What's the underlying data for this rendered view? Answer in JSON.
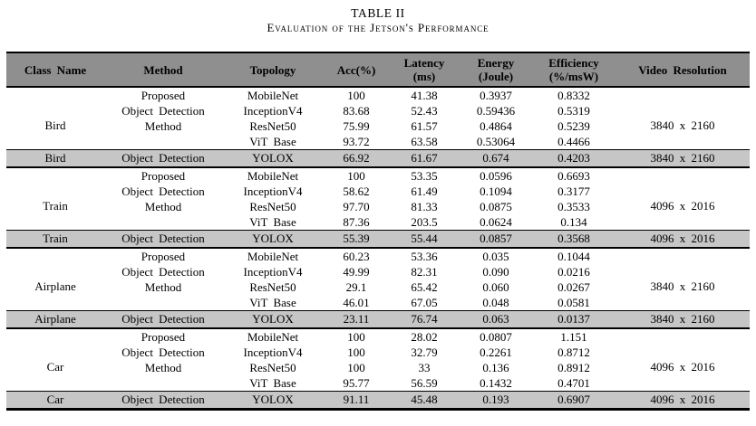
{
  "title": "TABLE II",
  "subtitle": "Evaluation of the Jetson's Performance",
  "colors": {
    "header_background": "#8f8f8f",
    "highlight_row_background": "#c6c6c6",
    "border": "#000000",
    "text": "#000000",
    "page_background": "#ffffff"
  },
  "table": {
    "columns": [
      [
        "Class Name"
      ],
      [
        "Method"
      ],
      [
        "Topology"
      ],
      [
        "Acc(%)"
      ],
      [
        "Latency",
        "(ms)"
      ],
      [
        "Energy",
        "(Joule)"
      ],
      [
        "Efficiency",
        "(%/msW)"
      ],
      [
        "Video Resolution"
      ]
    ],
    "groups": [
      {
        "class_name": "Bird",
        "method": [
          "Proposed",
          "Object Detection",
          "Method"
        ],
        "resolution": "3840 x 2160",
        "rows": [
          {
            "topology": "MobileNet",
            "acc": "100",
            "latency": "41.38",
            "energy": "0.3937",
            "efficiency": "0.8332"
          },
          {
            "topology": "InceptionV4",
            "acc": "83.68",
            "latency": "52.43",
            "energy": "0.59436",
            "efficiency": "0.5319"
          },
          {
            "topology": "ResNet50",
            "acc": "75.99",
            "latency": "61.57",
            "energy": "0.4864",
            "efficiency": "0.5239"
          },
          {
            "topology": "ViT Base",
            "acc": "93.72",
            "latency": "63.58",
            "energy": "0.53064",
            "efficiency": "0.4466"
          }
        ],
        "yolox_row": {
          "class_name": "Bird",
          "method": "Object Detection",
          "topology": "YOLOX",
          "acc": "66.92",
          "latency": "61.67",
          "energy": "0.674",
          "efficiency": "0.4203",
          "resolution": "3840 x 2160"
        }
      },
      {
        "class_name": "Train",
        "method": [
          "Proposed",
          "Object Detection",
          "Method"
        ],
        "resolution": "4096 x 2016",
        "rows": [
          {
            "topology": "MobileNet",
            "acc": "100",
            "latency": "53.35",
            "energy": "0.0596",
            "efficiency": "0.6693"
          },
          {
            "topology": "InceptionV4",
            "acc": "58.62",
            "latency": "61.49",
            "energy": "0.1094",
            "efficiency": "0.3177"
          },
          {
            "topology": "ResNet50",
            "acc": "97.70",
            "latency": "81.33",
            "energy": "0.0875",
            "efficiency": "0.3533"
          },
          {
            "topology": "ViT Base",
            "acc": "87.36",
            "latency": "203.5",
            "energy": "0.0624",
            "efficiency": "0.134"
          }
        ],
        "yolox_row": {
          "class_name": "Train",
          "method": "Object Detection",
          "topology": "YOLOX",
          "acc": "55.39",
          "latency": "55.44",
          "energy": "0.0857",
          "efficiency": "0.3568",
          "resolution": "4096 x 2016"
        }
      },
      {
        "class_name": "Airplane",
        "method": [
          "Proposed",
          "Object Detection",
          "Method"
        ],
        "resolution": "3840 x 2160",
        "rows": [
          {
            "topology": "MobileNet",
            "acc": "60.23",
            "latency": "53.36",
            "energy": "0.035",
            "efficiency": "0.1044"
          },
          {
            "topology": "InceptionV4",
            "acc": "49.99",
            "latency": "82.31",
            "energy": "0.090",
            "efficiency": "0.0216"
          },
          {
            "topology": "ResNet50",
            "acc": "29.1",
            "latency": "65.42",
            "energy": "0.060",
            "efficiency": "0.0267"
          },
          {
            "topology": "ViT Base",
            "acc": "46.01",
            "latency": "67.05",
            "energy": "0.048",
            "efficiency": "0.0581"
          }
        ],
        "yolox_row": {
          "class_name": "Airplane",
          "method": "Object Detection",
          "topology": "YOLOX",
          "acc": "23.11",
          "latency": "76.74",
          "energy": "0.063",
          "efficiency": "0.0137",
          "resolution": "3840 x 2160"
        }
      },
      {
        "class_name": "Car",
        "method": [
          "Proposed",
          "Object Detection",
          "Method"
        ],
        "resolution": "4096 x 2016",
        "rows": [
          {
            "topology": "MobileNet",
            "acc": "100",
            "latency": "28.02",
            "energy": "0.0807",
            "efficiency": "1.151"
          },
          {
            "topology": "InceptionV4",
            "acc": "100",
            "latency": "32.79",
            "energy": "0.2261",
            "efficiency": "0.8712"
          },
          {
            "topology": "ResNet50",
            "acc": "100",
            "latency": "33",
            "energy": "0.136",
            "efficiency": "0.8912"
          },
          {
            "topology": "ViT Base",
            "acc": "95.77",
            "latency": "56.59",
            "energy": "0.1432",
            "efficiency": "0.4701"
          }
        ],
        "yolox_row": {
          "class_name": "Car",
          "method": "Object Detection",
          "topology": "YOLOX",
          "acc": "91.11",
          "latency": "45.48",
          "energy": "0.193",
          "efficiency": "0.6907",
          "resolution": "4096 x 2016"
        }
      }
    ]
  }
}
